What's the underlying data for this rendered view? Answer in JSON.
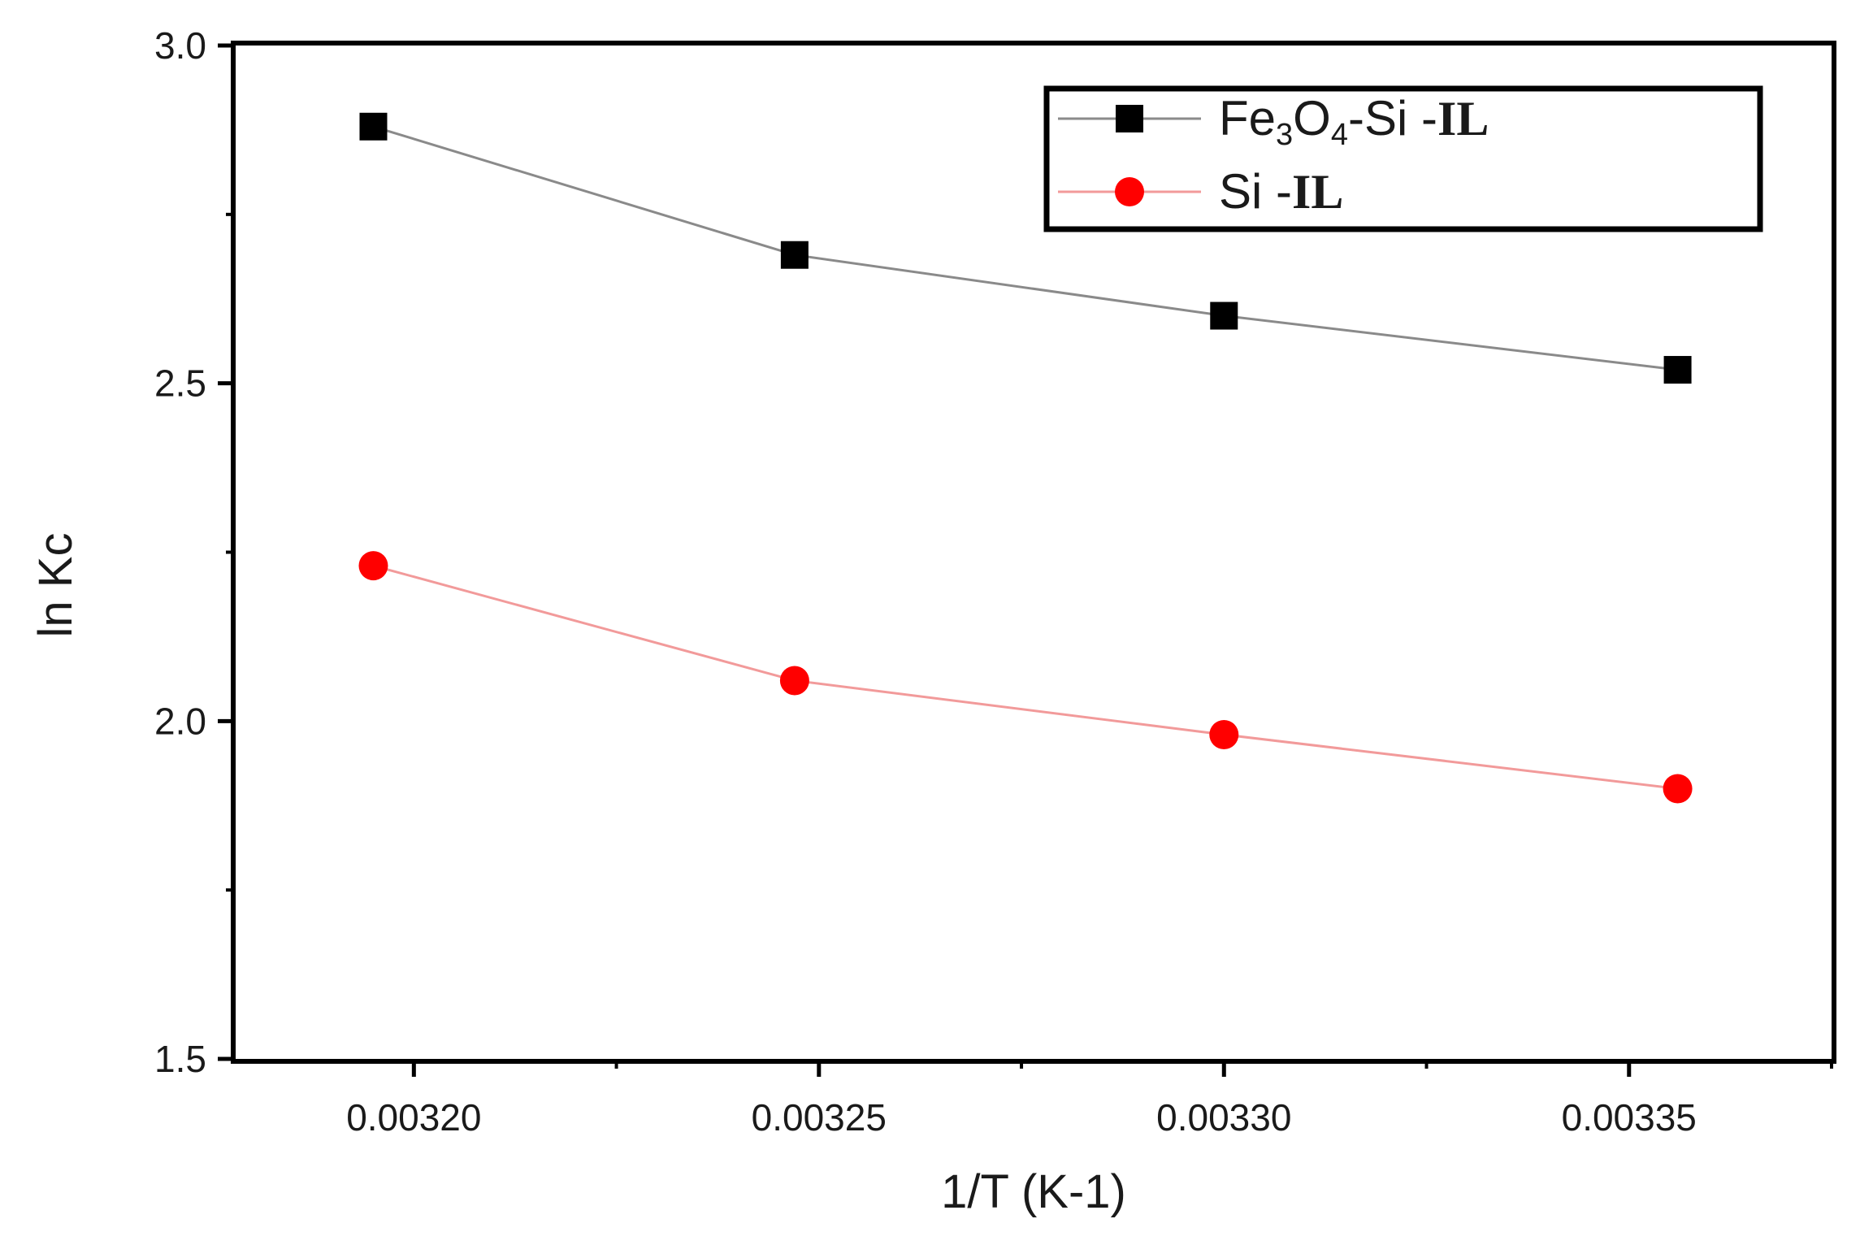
{
  "chart_data": {
    "type": "line",
    "xlabel": "1/T (K-1)",
    "ylabel": "ln Kc",
    "xlim": [
      0.003178,
      0.003375
    ],
    "ylim": [
      1.5,
      3.0
    ],
    "x_ticks": [
      0.0032,
      0.00325,
      0.0033,
      0.00335
    ],
    "x_tick_labels": [
      "0.00320",
      "0.00325",
      "0.00330",
      "0.00335"
    ],
    "y_ticks": [
      1.5,
      2.0,
      2.5,
      3.0
    ],
    "y_tick_labels": [
      "1.5",
      "2.0",
      "2.5",
      "3.0"
    ],
    "grid": false,
    "legend_position": "top-right",
    "series": [
      {
        "name": "Fe3O4-Si -IL",
        "legend_parts": {
          "a": "Fe",
          "s1": "3",
          "b": "O",
          "s2": "4",
          "c": "-Si -",
          "bold": "IL"
        },
        "color": "#000000",
        "line_color": "#8a8a8a",
        "marker": "square",
        "x": [
          0.003195,
          0.003247,
          0.0033,
          0.003356
        ],
        "y": [
          2.88,
          2.69,
          2.6,
          2.52
        ]
      },
      {
        "name": "Si -IL",
        "legend_parts": {
          "a": "Si -",
          "bold": "IL"
        },
        "color": "#ff0000",
        "line_color": "#f29a9a",
        "marker": "circle",
        "x": [
          0.003195,
          0.003247,
          0.0033,
          0.003356
        ],
        "y": [
          2.23,
          2.06,
          1.98,
          1.9
        ]
      }
    ]
  }
}
